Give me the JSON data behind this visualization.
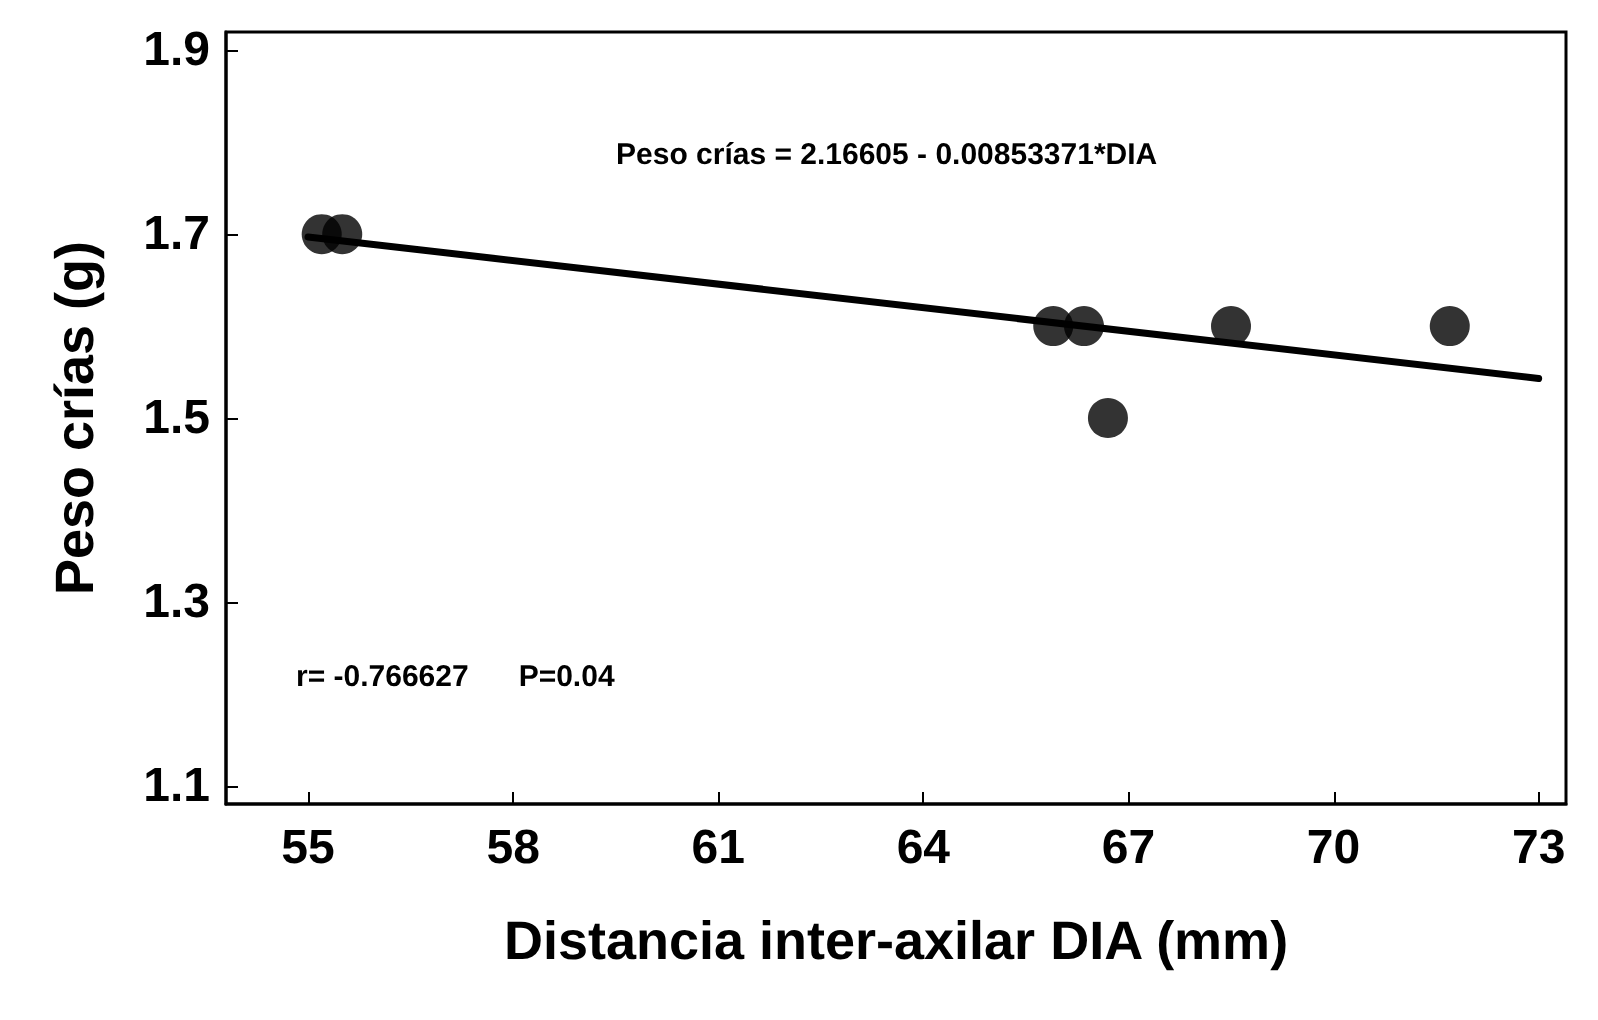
{
  "chart_data": {
    "type": "scatter",
    "xlabel": "Distancia inter-axilar DIA (mm)",
    "ylabel": "Peso crías (g)",
    "annotations": [
      "Peso crías = 2.16605 - 0.00853371*DIA",
      "r= -0.766627      P=0.04"
    ],
    "xlim": [
      53.8,
      73.4
    ],
    "xticks": [
      55,
      58,
      61,
      64,
      67,
      70,
      73
    ],
    "ylim": [
      1.08,
      1.92
    ],
    "yticks": [
      1.1,
      1.3,
      1.5,
      1.7,
      1.9
    ],
    "marker": "circle",
    "series": [
      {
        "type": "scatter",
        "color": "#000000",
        "x": [
          55.2,
          55.5,
          65.9,
          66.35,
          66.7,
          68.5,
          71.7
        ],
        "values": [
          1.7,
          1.7,
          1.6,
          1.6,
          1.5,
          1.6,
          1.6
        ]
      },
      {
        "type": "line",
        "color": "#000000",
        "line_style": "solid",
        "marker": "none",
        "x": [
          55,
          73
        ],
        "values": [
          1.697,
          1.543
        ]
      }
    ]
  }
}
